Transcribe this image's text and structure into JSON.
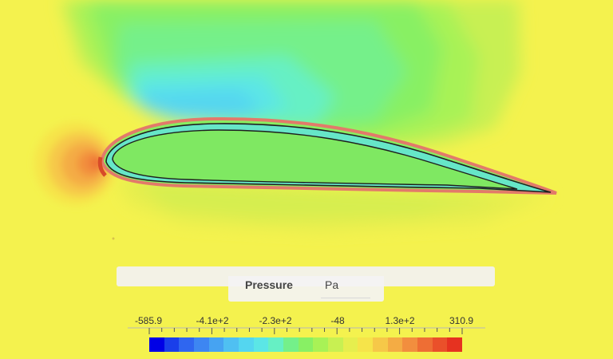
{
  "legend": {
    "quantity": "Pressure",
    "unit": "Pa",
    "ticks": [
      "-585.9",
      "-4.1e+2",
      "-2.3e+2",
      "-48",
      "1.3e+2",
      "310.9"
    ],
    "colormap": [
      "#0000e6",
      "#1a3fea",
      "#2f66f0",
      "#3d86f2",
      "#46a3f2",
      "#4fc0f2",
      "#54d6f0",
      "#5be6e6",
      "#66f0c4",
      "#74f08a",
      "#88f064",
      "#a8f256",
      "#c8f052",
      "#e6ee4e",
      "#f6e44a",
      "#f6c848",
      "#f4ac44",
      "#f28e3e",
      "#ee6e34",
      "#ea502a",
      "#e63220"
    ]
  }
}
